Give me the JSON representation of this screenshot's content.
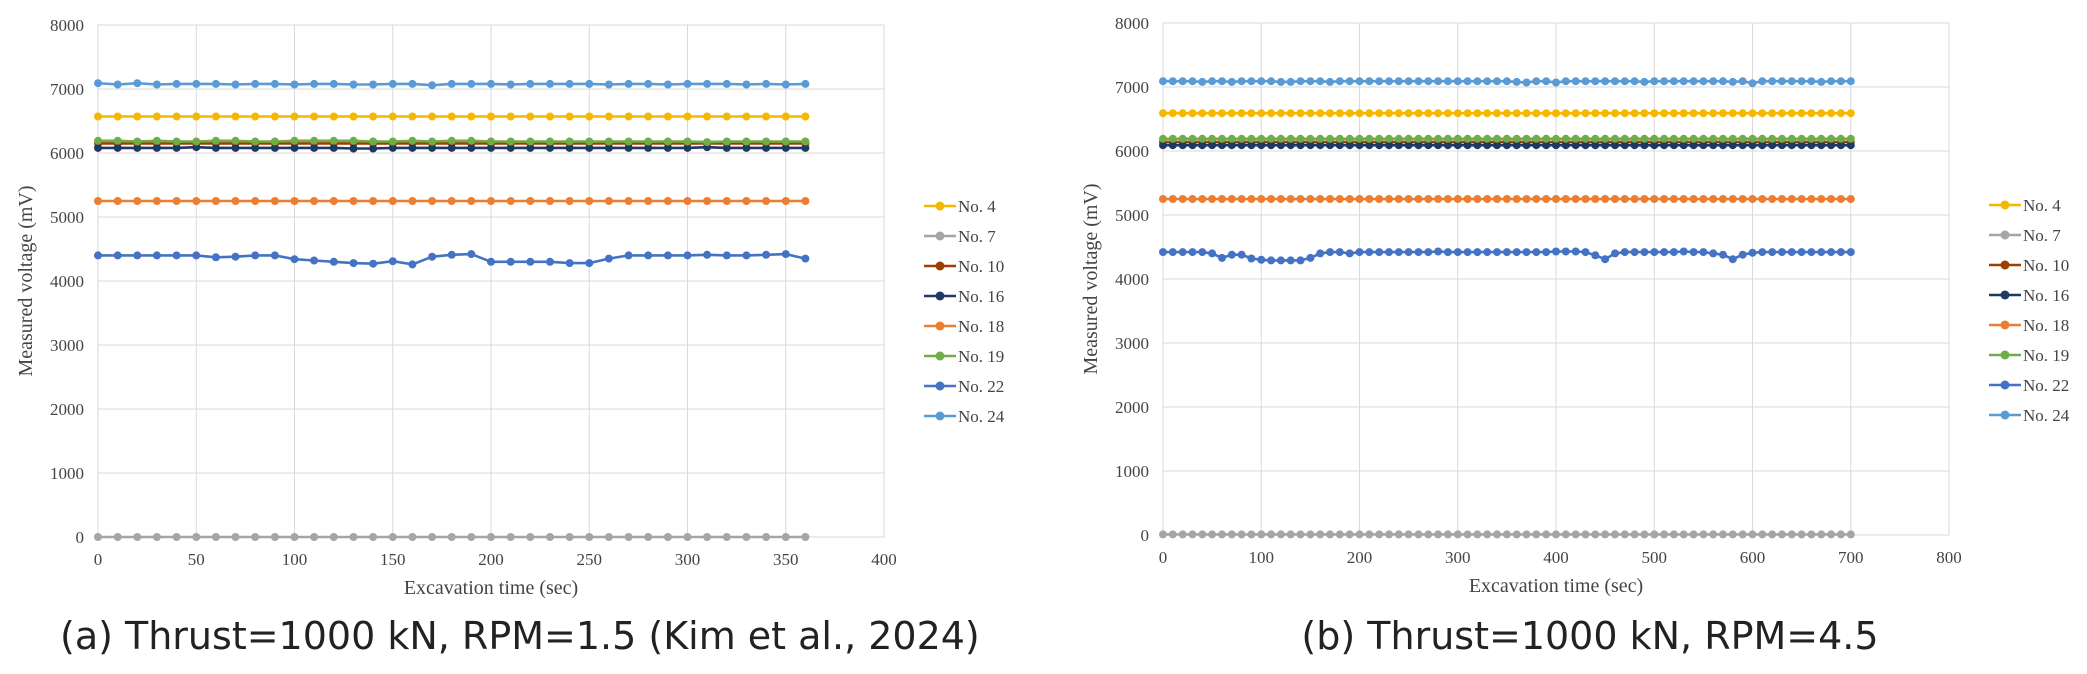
{
  "captions": {
    "a": "(a) Thrust=1000 kN, RPM=1.5 (Kim et al., 2024)",
    "b": "(b) Thrust=1000 kN, RPM=4.5"
  },
  "colors": {
    "No. 4": "#F5B700",
    "No. 7": "#A5A5A5",
    "No. 10": "#9E3F00",
    "No. 16": "#1F3864",
    "No. 18": "#ED7D31",
    "No. 19": "#70AD47",
    "No. 22": "#4472C4",
    "No. 24": "#5B9BD5"
  },
  "chart_data": [
    {
      "id": "a",
      "type": "line",
      "title": "",
      "xlabel": "Excavation time (sec)",
      "ylabel": "Measured voltage (mV)",
      "xlim": [
        0,
        400
      ],
      "ylim": [
        0,
        8000
      ],
      "xticks": [
        0,
        50,
        100,
        150,
        200,
        250,
        300,
        350,
        400
      ],
      "yticks": [
        0,
        1000,
        2000,
        3000,
        4000,
        5000,
        6000,
        7000,
        8000
      ],
      "grid": true,
      "legend": "right",
      "x": [
        0,
        10,
        20,
        30,
        40,
        50,
        60,
        70,
        80,
        90,
        100,
        110,
        120,
        130,
        140,
        150,
        160,
        170,
        180,
        190,
        200,
        210,
        220,
        230,
        240,
        250,
        260,
        270,
        280,
        290,
        300,
        310,
        320,
        330,
        340,
        350,
        360
      ],
      "series": [
        {
          "name": "No. 4",
          "values": [
            6570,
            6570,
            6570,
            6570,
            6570,
            6570,
            6570,
            6570,
            6570,
            6570,
            6570,
            6570,
            6570,
            6570,
            6570,
            6570,
            6570,
            6570,
            6570,
            6570,
            6570,
            6570,
            6570,
            6570,
            6570,
            6570,
            6570,
            6570,
            6570,
            6570,
            6570,
            6570,
            6570,
            6570,
            6570,
            6570,
            6570
          ]
        },
        {
          "name": "No. 7",
          "values": [
            0,
            0,
            0,
            0,
            0,
            0,
            0,
            0,
            0,
            0,
            0,
            0,
            0,
            0,
            0,
            0,
            0,
            0,
            0,
            0,
            0,
            0,
            0,
            0,
            0,
            0,
            0,
            0,
            0,
            0,
            0,
            0,
            0,
            0,
            0,
            0,
            0
          ]
        },
        {
          "name": "No. 10",
          "values": [
            6150,
            6150,
            6150,
            6150,
            6150,
            6150,
            6150,
            6150,
            6150,
            6150,
            6150,
            6150,
            6150,
            6150,
            6150,
            6150,
            6150,
            6150,
            6150,
            6150,
            6150,
            6150,
            6150,
            6150,
            6150,
            6150,
            6150,
            6150,
            6150,
            6150,
            6150,
            6150,
            6150,
            6150,
            6150,
            6150,
            6150
          ]
        },
        {
          "name": "No. 16",
          "values": [
            6080,
            6080,
            6080,
            6080,
            6080,
            6090,
            6080,
            6080,
            6080,
            6080,
            6080,
            6080,
            6080,
            6070,
            6070,
            6080,
            6080,
            6080,
            6080,
            6080,
            6080,
            6080,
            6080,
            6080,
            6080,
            6080,
            6080,
            6080,
            6080,
            6080,
            6080,
            6090,
            6080,
            6080,
            6080,
            6080,
            6080
          ]
        },
        {
          "name": "No. 18",
          "values": [
            5250,
            5250,
            5250,
            5250,
            5250,
            5250,
            5250,
            5250,
            5250,
            5250,
            5250,
            5250,
            5250,
            5250,
            5250,
            5250,
            5250,
            5250,
            5250,
            5250,
            5250,
            5250,
            5250,
            5250,
            5250,
            5250,
            5250,
            5250,
            5250,
            5250,
            5250,
            5250,
            5250,
            5250,
            5250,
            5250,
            5250
          ]
        },
        {
          "name": "No. 19",
          "values": [
            6190,
            6190,
            6180,
            6190,
            6180,
            6180,
            6190,
            6190,
            6180,
            6180,
            6190,
            6190,
            6190,
            6190,
            6180,
            6180,
            6190,
            6180,
            6190,
            6190,
            6180,
            6180,
            6180,
            6180,
            6180,
            6180,
            6180,
            6180,
            6180,
            6180,
            6180,
            6170,
            6180,
            6180,
            6180,
            6180,
            6180
          ]
        },
        {
          "name": "No. 22",
          "values": [
            4400,
            4400,
            4400,
            4400,
            4400,
            4400,
            4370,
            4380,
            4400,
            4400,
            4340,
            4320,
            4300,
            4280,
            4270,
            4310,
            4260,
            4380,
            4410,
            4420,
            4300,
            4300,
            4300,
            4300,
            4280,
            4280,
            4350,
            4400,
            4400,
            4400,
            4400,
            4410,
            4400,
            4400,
            4410,
            4420,
            4350
          ]
        },
        {
          "name": "No. 24",
          "values": [
            7090,
            7070,
            7090,
            7070,
            7080,
            7080,
            7080,
            7070,
            7080,
            7080,
            7070,
            7080,
            7080,
            7070,
            7070,
            7080,
            7080,
            7060,
            7080,
            7080,
            7080,
            7070,
            7080,
            7080,
            7080,
            7080,
            7070,
            7080,
            7080,
            7070,
            7080,
            7080,
            7080,
            7070,
            7080,
            7070,
            7080
          ]
        }
      ]
    },
    {
      "id": "b",
      "type": "line",
      "title": "",
      "xlabel": "Excavation time (sec)",
      "ylabel": "Measured voltage (mV)",
      "xlim": [
        0,
        800
      ],
      "ylim": [
        0,
        8000
      ],
      "xticks": [
        0,
        100,
        200,
        300,
        400,
        500,
        600,
        700,
        800
      ],
      "yticks": [
        0,
        1000,
        2000,
        3000,
        4000,
        5000,
        6000,
        7000,
        8000
      ],
      "grid": true,
      "legend": "right",
      "x": [
        0,
        10,
        20,
        30,
        40,
        50,
        60,
        70,
        80,
        90,
        100,
        110,
        120,
        130,
        140,
        150,
        160,
        170,
        180,
        190,
        200,
        210,
        220,
        230,
        240,
        250,
        260,
        270,
        280,
        290,
        300,
        310,
        320,
        330,
        340,
        350,
        360,
        370,
        380,
        390,
        400,
        410,
        420,
        430,
        440,
        450,
        460,
        470,
        480,
        490,
        500,
        510,
        520,
        530,
        540,
        550,
        560,
        570,
        580,
        590,
        600,
        610,
        620,
        630,
        640,
        650,
        660,
        670,
        680,
        690,
        700
      ],
      "series": [
        {
          "name": "No. 4",
          "values": [
            6590,
            6590,
            6590,
            6590,
            6590,
            6590,
            6590,
            6590,
            6590,
            6590,
            6590,
            6590,
            6590,
            6590,
            6590,
            6590,
            6590,
            6590,
            6590,
            6590,
            6590,
            6590,
            6590,
            6590,
            6590,
            6590,
            6590,
            6590,
            6590,
            6590,
            6590,
            6590,
            6590,
            6590,
            6590,
            6590,
            6590,
            6590,
            6590,
            6590,
            6590,
            6590,
            6590,
            6590,
            6590,
            6590,
            6590,
            6590,
            6590,
            6590,
            6590,
            6590,
            6590,
            6590,
            6590,
            6590,
            6590,
            6590,
            6590,
            6590,
            6590,
            6590,
            6590,
            6590,
            6590,
            6590,
            6590,
            6590,
            6590,
            6590,
            6590
          ]
        },
        {
          "name": "No. 7",
          "values": [
            10,
            10,
            10,
            10,
            10,
            10,
            10,
            10,
            10,
            10,
            10,
            10,
            10,
            10,
            10,
            10,
            10,
            10,
            10,
            10,
            10,
            10,
            10,
            10,
            10,
            10,
            10,
            10,
            10,
            10,
            10,
            10,
            10,
            10,
            10,
            10,
            10,
            10,
            10,
            10,
            10,
            10,
            10,
            10,
            10,
            10,
            10,
            10,
            10,
            10,
            10,
            10,
            10,
            10,
            10,
            10,
            10,
            10,
            10,
            10,
            10,
            10,
            10,
            10,
            10,
            10,
            10,
            10,
            10,
            10,
            10
          ]
        },
        {
          "name": "No. 10",
          "values": [
            6140,
            6140,
            6140,
            6140,
            6140,
            6140,
            6140,
            6140,
            6140,
            6140,
            6140,
            6140,
            6140,
            6140,
            6140,
            6140,
            6140,
            6140,
            6140,
            6140,
            6140,
            6140,
            6140,
            6140,
            6140,
            6140,
            6140,
            6140,
            6140,
            6140,
            6140,
            6140,
            6140,
            6140,
            6140,
            6140,
            6140,
            6140,
            6140,
            6140,
            6140,
            6140,
            6140,
            6140,
            6140,
            6140,
            6140,
            6140,
            6140,
            6140,
            6140,
            6140,
            6140,
            6140,
            6140,
            6140,
            6140,
            6140,
            6140,
            6140,
            6140,
            6140,
            6140,
            6140,
            6140,
            6140,
            6140,
            6140,
            6140,
            6140,
            6140
          ]
        },
        {
          "name": "No. 16",
          "values": [
            6090,
            6090,
            6090,
            6090,
            6090,
            6090,
            6090,
            6090,
            6090,
            6090,
            6090,
            6090,
            6090,
            6090,
            6090,
            6090,
            6090,
            6090,
            6090,
            6090,
            6090,
            6090,
            6090,
            6090,
            6090,
            6090,
            6090,
            6090,
            6090,
            6090,
            6090,
            6090,
            6090,
            6090,
            6090,
            6090,
            6090,
            6090,
            6090,
            6090,
            6090,
            6090,
            6090,
            6090,
            6090,
            6090,
            6090,
            6090,
            6090,
            6090,
            6090,
            6090,
            6090,
            6090,
            6090,
            6090,
            6090,
            6090,
            6090,
            6090,
            6090,
            6090,
            6090,
            6090,
            6090,
            6090,
            6090,
            6090,
            6090,
            6090,
            6090
          ]
        },
        {
          "name": "No. 18",
          "values": [
            5250,
            5250,
            5250,
            5250,
            5250,
            5250,
            5250,
            5250,
            5250,
            5250,
            5250,
            5250,
            5250,
            5250,
            5250,
            5250,
            5250,
            5250,
            5250,
            5250,
            5250,
            5250,
            5250,
            5250,
            5250,
            5250,
            5250,
            5250,
            5250,
            5250,
            5250,
            5250,
            5250,
            5250,
            5250,
            5250,
            5250,
            5250,
            5250,
            5250,
            5250,
            5250,
            5250,
            5250,
            5250,
            5250,
            5250,
            5250,
            5250,
            5250,
            5250,
            5250,
            5250,
            5250,
            5250,
            5250,
            5250,
            5250,
            5250,
            5250,
            5250,
            5250,
            5250,
            5250,
            5250,
            5250,
            5250,
            5250,
            5250,
            5250,
            5250
          ]
        },
        {
          "name": "No. 19",
          "values": [
            6190,
            6190,
            6190,
            6190,
            6190,
            6190,
            6190,
            6190,
            6190,
            6190,
            6190,
            6190,
            6190,
            6190,
            6190,
            6190,
            6190,
            6190,
            6190,
            6190,
            6190,
            6190,
            6190,
            6190,
            6190,
            6190,
            6190,
            6190,
            6190,
            6190,
            6190,
            6190,
            6190,
            6190,
            6190,
            6190,
            6190,
            6190,
            6190,
            6190,
            6190,
            6190,
            6190,
            6190,
            6190,
            6190,
            6190,
            6190,
            6190,
            6190,
            6190,
            6190,
            6190,
            6190,
            6190,
            6190,
            6190,
            6190,
            6190,
            6190,
            6190,
            6190,
            6190,
            6190,
            6190,
            6190,
            6190,
            6190,
            6190,
            6190,
            6190
          ]
        },
        {
          "name": "No. 22",
          "values": [
            4420,
            4420,
            4420,
            4420,
            4420,
            4400,
            4330,
            4380,
            4380,
            4320,
            4300,
            4290,
            4290,
            4290,
            4290,
            4330,
            4400,
            4420,
            4420,
            4400,
            4420,
            4420,
            4420,
            4420,
            4420,
            4420,
            4420,
            4420,
            4430,
            4420,
            4420,
            4420,
            4420,
            4420,
            4420,
            4420,
            4420,
            4420,
            4420,
            4420,
            4430,
            4430,
            4430,
            4420,
            4370,
            4310,
            4400,
            4420,
            4420,
            4420,
            4420,
            4420,
            4420,
            4430,
            4420,
            4420,
            4400,
            4380,
            4310,
            4380,
            4410,
            4420,
            4420,
            4420,
            4420,
            4420,
            4420,
            4420,
            4420,
            4420,
            4420
          ]
        },
        {
          "name": "No. 24",
          "values": [
            7090,
            7090,
            7090,
            7090,
            7080,
            7090,
            7090,
            7080,
            7090,
            7090,
            7090,
            7090,
            7080,
            7080,
            7090,
            7090,
            7090,
            7080,
            7090,
            7090,
            7090,
            7090,
            7090,
            7090,
            7090,
            7090,
            7090,
            7090,
            7090,
            7090,
            7090,
            7090,
            7090,
            7090,
            7090,
            7090,
            7080,
            7070,
            7090,
            7090,
            7070,
            7090,
            7090,
            7090,
            7090,
            7090,
            7090,
            7090,
            7090,
            7080,
            7090,
            7090,
            7090,
            7090,
            7090,
            7090,
            7090,
            7090,
            7080,
            7090,
            7060,
            7090,
            7090,
            7090,
            7090,
            7090,
            7090,
            7080,
            7090,
            7090,
            7090
          ]
        }
      ]
    }
  ]
}
